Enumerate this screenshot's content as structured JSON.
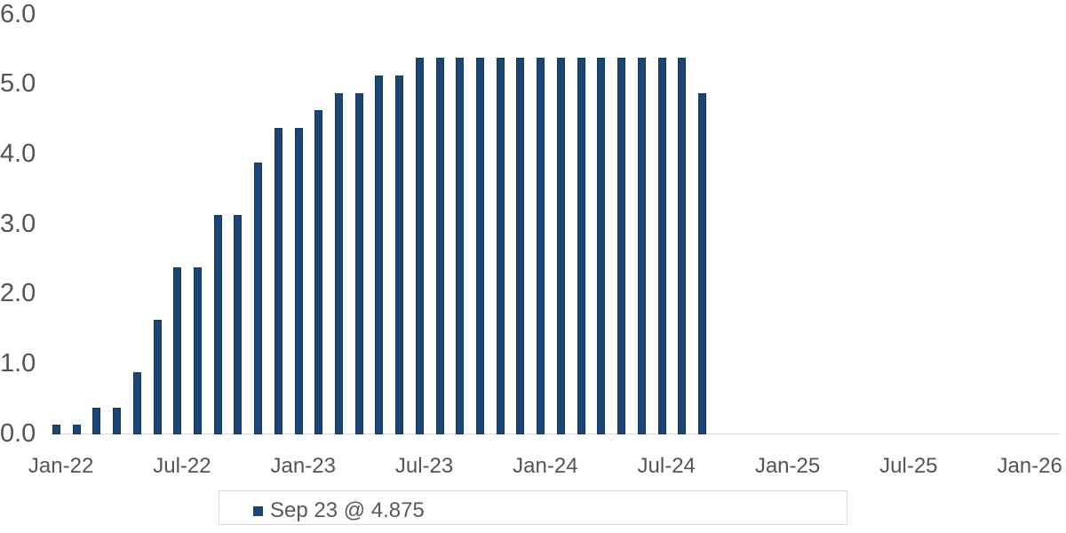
{
  "chart_data": {
    "type": "bar",
    "title": "",
    "categories": [
      "Jan-22",
      "Feb-22",
      "Mar-22",
      "Apr-22",
      "May-22",
      "Jun-22",
      "Jul-22",
      "Aug-22",
      "Sep-22",
      "Oct-22",
      "Nov-22",
      "Dec-22",
      "Jan-23",
      "Feb-23",
      "Mar-23",
      "Apr-23",
      "May-23",
      "Jun-23",
      "Jul-23",
      "Aug-23",
      "Sep-23",
      "Oct-23",
      "Nov-23",
      "Dec-23",
      "Jan-24",
      "Feb-24",
      "Mar-24",
      "Apr-24",
      "May-24",
      "Jun-24",
      "Jul-24",
      "Aug-24",
      "Sep-24"
    ],
    "series": [
      {
        "name": "Sep 23 @ 4.875",
        "values": [
          0.125,
          0.125,
          0.375,
          0.375,
          0.875,
          1.625,
          2.375,
          2.375,
          3.125,
          3.125,
          3.875,
          4.375,
          4.375,
          4.625,
          4.875,
          4.875,
          5.125,
          5.125,
          5.375,
          5.375,
          5.375,
          5.375,
          5.375,
          5.375,
          5.375,
          5.375,
          5.375,
          5.375,
          5.375,
          5.375,
          5.375,
          5.375,
          4.875
        ]
      }
    ],
    "xlabel": "",
    "ylabel": "",
    "ylim": [
      0,
      6
    ],
    "y_tick_labels": [
      "0.0",
      "1.0",
      "2.0",
      "3.0",
      "4.0",
      "5.0",
      "6.0"
    ],
    "y_tick_values": [
      0,
      1,
      2,
      3,
      4,
      5,
      6
    ],
    "x_tick_labels": [
      "Jan-22",
      "Jul-22",
      "Jan-23",
      "Jul-23",
      "Jan-24",
      "Jul-24",
      "Jan-25",
      "Jul-25",
      "Jan-26"
    ],
    "x_axis_first_month": "Jan-22",
    "x_axis_last_month": "Feb-26",
    "x_axis_slot_count": 50,
    "grid": "off",
    "legend_position": "bottom"
  },
  "legend": {
    "label": "Sep 23 @ 4.875"
  },
  "colors": {
    "bar_fill": "#1b4573",
    "bar_border": "#103a66",
    "axis_line": "#d9d9d9",
    "axis_label_text": "#545454",
    "legend_text": "#595959",
    "legend_border": "#d9d9d9",
    "background": "#ffffff"
  }
}
